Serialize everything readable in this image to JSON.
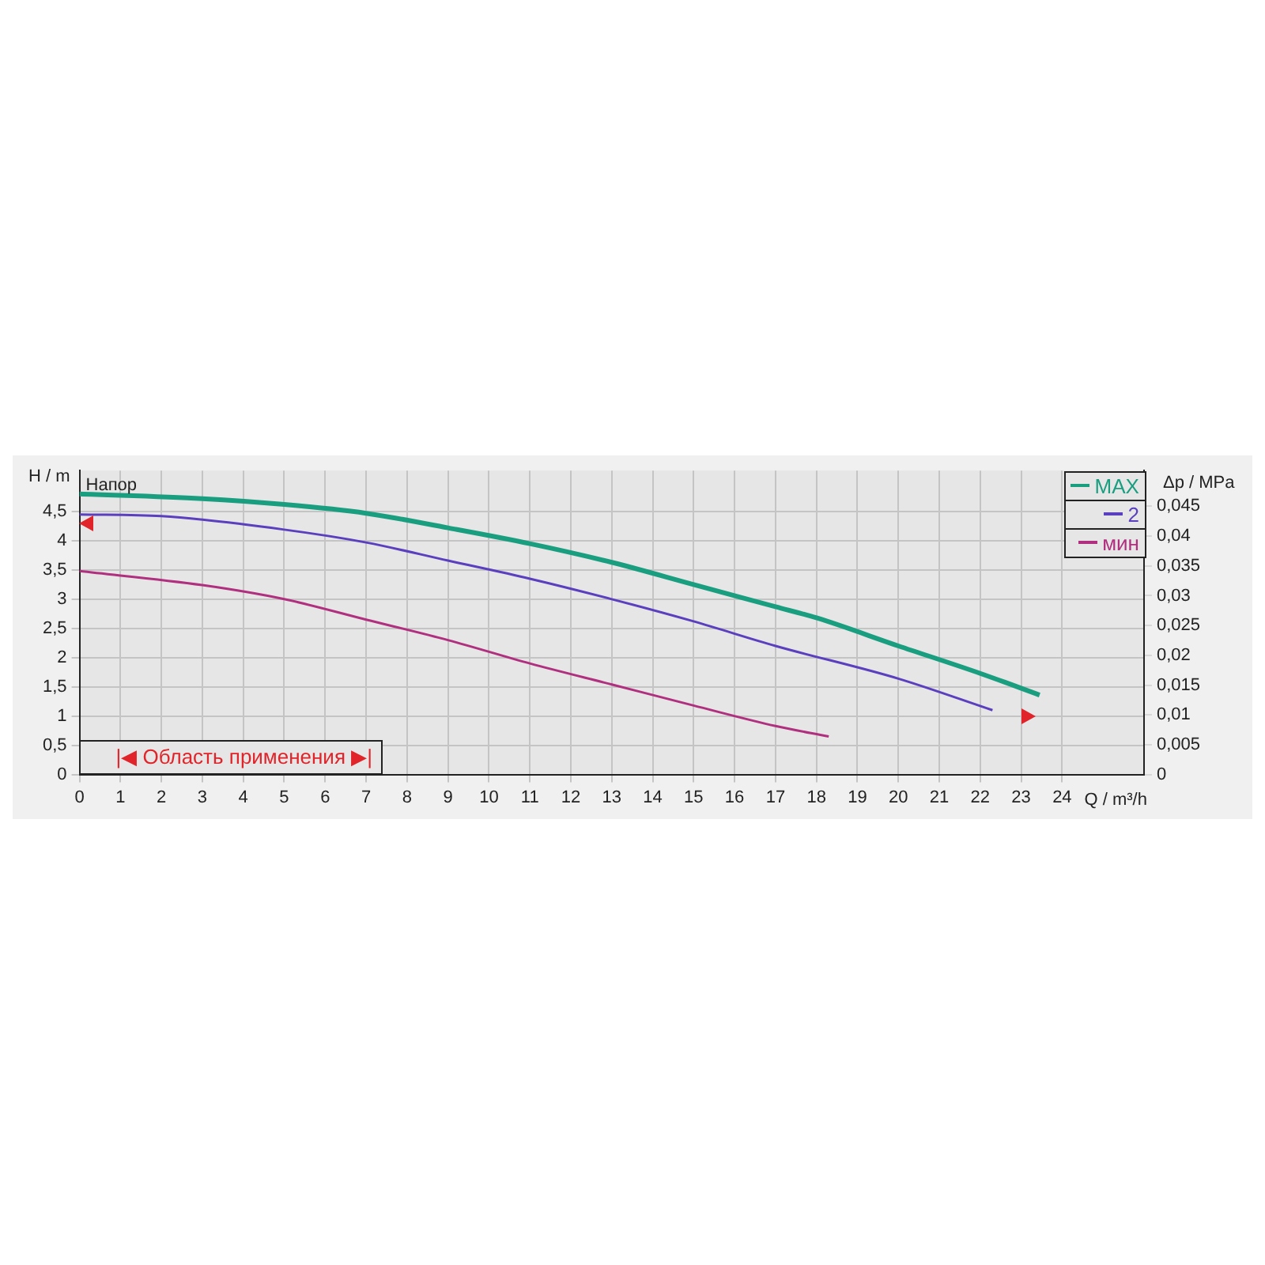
{
  "chart_data": {
    "type": "line",
    "ylabel": "H / m",
    "y2label": "Δp / MPa",
    "xlabel": "Q / m³/h",
    "annotations": [
      "Напор",
      "|◀ Область применения ▶|"
    ],
    "series": [
      {
        "name": "MAX",
        "color": "#1a9e80",
        "x": [
          0,
          3,
          5,
          7,
          9,
          11,
          13,
          15,
          17,
          18,
          20,
          22,
          23.45
        ],
        "values": [
          4.8,
          4.72,
          4.62,
          4.47,
          4.22,
          3.95,
          3.63,
          3.25,
          2.87,
          2.68,
          2.2,
          1.73,
          1.36
        ]
      },
      {
        "name": "2",
        "color": "#5a3fbf",
        "x": [
          0,
          2,
          5,
          7,
          9,
          11,
          13,
          15,
          17,
          20,
          22.3
        ],
        "values": [
          4.45,
          4.42,
          4.19,
          3.97,
          3.66,
          3.35,
          3.0,
          2.62,
          2.2,
          1.64,
          1.1
        ]
      },
      {
        "name": "мин",
        "color": "#b0307f",
        "x": [
          0,
          3,
          5,
          7,
          9,
          11,
          13,
          15,
          17,
          18.3
        ],
        "values": [
          3.48,
          3.24,
          3.0,
          2.65,
          2.3,
          1.9,
          1.54,
          1.18,
          0.83,
          0.65
        ]
      }
    ],
    "xlim": [
      0,
      26
    ],
    "xticks": [
      0,
      1,
      2,
      3,
      4,
      5,
      6,
      7,
      8,
      9,
      10,
      11,
      12,
      13,
      14,
      15,
      16,
      17,
      18,
      19,
      20,
      21,
      22,
      23,
      24
    ],
    "ylim": [
      0,
      5.2
    ],
    "yticks": [
      0,
      {
        "value": 0.5,
        "label": "0,5"
      },
      1,
      {
        "value": 1.5,
        "label": "1,5"
      },
      2,
      {
        "value": 2.5,
        "label": "2,5"
      },
      3,
      {
        "value": 3.5,
        "label": "3,5"
      },
      4,
      {
        "value": 4.5,
        "label": "4,5"
      }
    ],
    "y2lim": [
      0,
      0.051
    ],
    "y2ticks": [
      0,
      {
        "value": 0.005,
        "label": "0,005"
      },
      {
        "value": 0.01,
        "label": "0,01"
      },
      {
        "value": 0.015,
        "label": "0,015"
      },
      {
        "value": 0.02,
        "label": "0,02"
      },
      {
        "value": 0.025,
        "label": "0,025"
      },
      {
        "value": 0.03,
        "label": "0,03"
      },
      {
        "value": 0.035,
        "label": "0,035"
      },
      {
        "value": 0.04,
        "label": "0,04"
      },
      {
        "value": 0.045,
        "label": "0,045"
      }
    ],
    "grid": true,
    "legend": "top right"
  }
}
